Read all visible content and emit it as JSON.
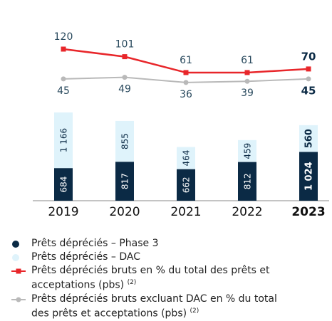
{
  "chart_data": {
    "type": "bar",
    "categories": [
      "2019",
      "2020",
      "2021",
      "2022",
      "2023"
    ],
    "ylim": [
      0,
      1850
    ],
    "y2lim": [
      0,
      120
    ],
    "series": [
      {
        "name": "Prêts dépréciés – Phase 3",
        "type": "bar",
        "color": "#0b2a45",
        "values": [
          684,
          817,
          662,
          812,
          1024
        ],
        "value_labels": [
          "684",
          "817",
          "662",
          "812",
          "1 024"
        ]
      },
      {
        "name": "Prêts dépréciés – DAC",
        "type": "bar",
        "color": "#dff3fb",
        "values": [
          1166,
          855,
          464,
          459,
          560
        ],
        "value_labels": [
          "1 166",
          "855",
          "464",
          "459",
          "560"
        ]
      },
      {
        "name": "Prêts dépréciés bruts en % du total des prêts et acceptations (pbs)",
        "footnote": "(2)",
        "type": "line",
        "axis": "y2",
        "color": "#e8262a",
        "values": [
          120,
          101,
          61,
          61,
          70
        ]
      },
      {
        "name": "Prêts dépréciés bruts excluant DAC en % du total des prêts et acceptations (pbs)",
        "footnote": "(2)",
        "type": "line",
        "axis": "y2",
        "color": "#b9b9b9",
        "values": [
          45,
          49,
          36,
          39,
          45
        ]
      }
    ]
  }
}
